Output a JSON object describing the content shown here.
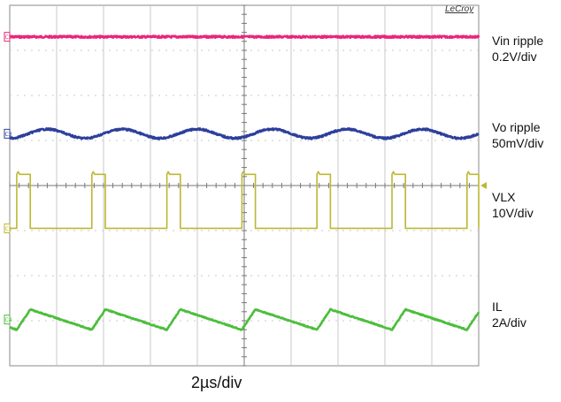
{
  "brand": "LeCroy",
  "timebase": "2µs/div",
  "chart_data": {
    "type": "line",
    "grid": true,
    "x_divisions": 10,
    "y_divisions": 8,
    "x_unit": "div",
    "series": [
      {
        "name": "Vin ripple",
        "scale": "0.2V/div",
        "channel": "C2",
        "color": "#e8267a",
        "waveform": "flat",
        "level_div": 3.3
      },
      {
        "name": "Vo ripple",
        "scale": "50mV/div",
        "channel": "C3",
        "color": "#2d3f9c",
        "waveform": "sine",
        "level_div": 1.15,
        "amplitude_div": 0.1,
        "period_div": 1.6
      },
      {
        "name": "VLX",
        "scale": "10V/div",
        "channel": "C1",
        "color": "#bcb832",
        "waveform": "square",
        "low_div": -0.95,
        "high_div": 0.25,
        "period_div": 1.6,
        "duty": 0.18
      },
      {
        "name": "IL",
        "scale": "2A/div",
        "channel": "C4",
        "color": "#4cbe3c",
        "waveform": "triangle",
        "min_div": -3.2,
        "max_div": -2.75,
        "period_div": 1.6,
        "duty": 0.18
      }
    ]
  },
  "labels": [
    {
      "line1": "Vin ripple",
      "line2": "0.2V/div"
    },
    {
      "line1": "Vo ripple",
      "line2": "50mV/div"
    },
    {
      "line1": "VLX",
      "line2": "10V/div"
    },
    {
      "line1": "IL",
      "line2": "2A/div"
    }
  ]
}
